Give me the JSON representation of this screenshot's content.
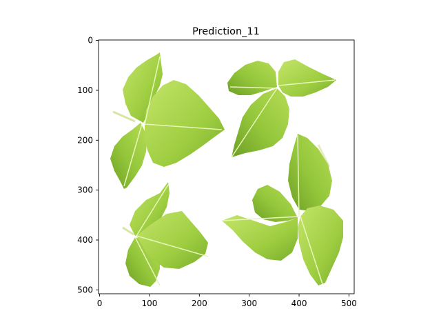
{
  "figure": {
    "title": "Prediction_11",
    "x_ticks": [
      "0",
      "100",
      "200",
      "300",
      "400",
      "500"
    ],
    "y_ticks": [
      "0",
      "100",
      "200",
      "300",
      "400",
      "500"
    ],
    "colors": {
      "leaf_light": "#b9df5a",
      "leaf_mid": "#97c93b",
      "leaf_dark": "#6fa628",
      "vein": "#e8f5b8",
      "stem": "#d7e6a3",
      "background": "#ffffff",
      "axes": "#000000"
    }
  },
  "image": {
    "leaf_clusters": [
      {
        "name": "top-left-cluster",
        "leaves": 3
      },
      {
        "name": "top-right-cluster",
        "leaves": 3
      },
      {
        "name": "bottom-left-cluster",
        "leaves": 3
      },
      {
        "name": "bottom-right-cluster",
        "leaves": 4
      }
    ]
  }
}
